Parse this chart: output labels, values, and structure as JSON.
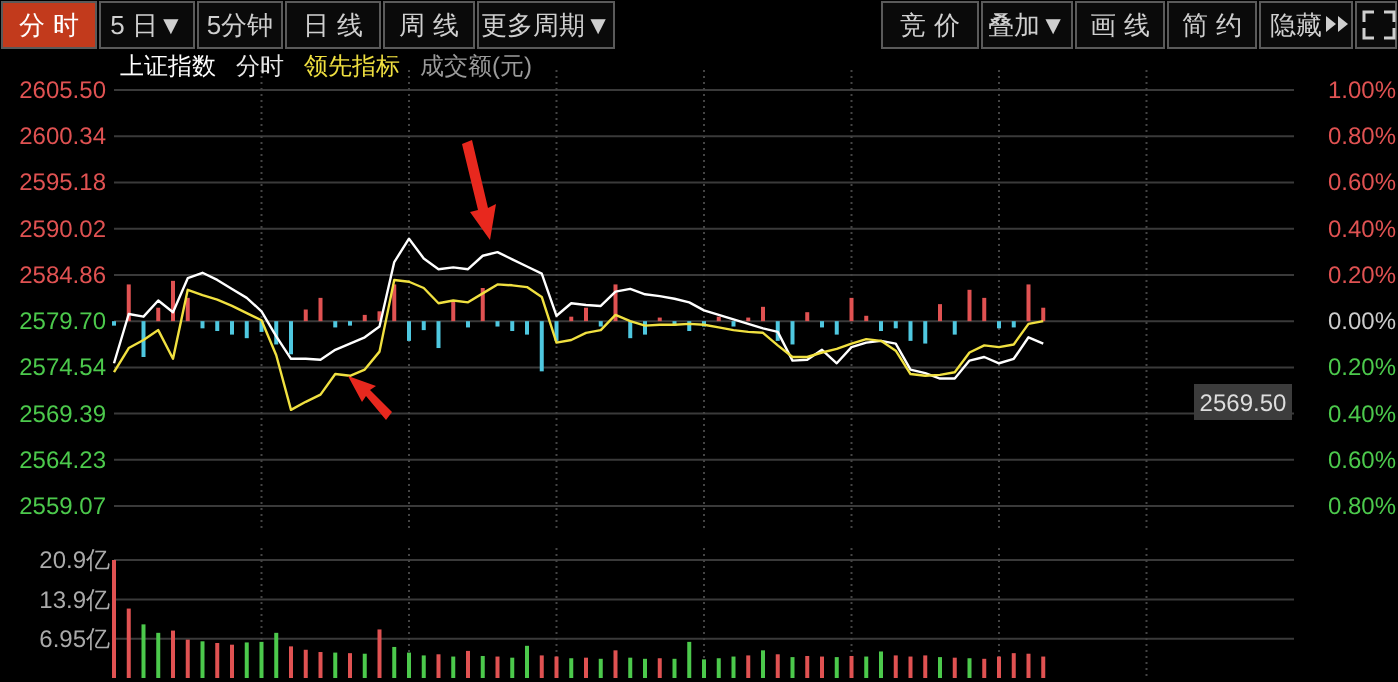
{
  "chart_data": [
    {
      "type": "other",
      "annotations": [
        "分 时",
        "5 日▼",
        "5分钟",
        "日 线",
        "周 线",
        "更多周期▼",
        "竞 价",
        "叠加▼",
        "画 线",
        "简 约",
        "隐藏"
      ]
    },
    {
      "type": "line",
      "categories": [
        null,
        null,
        null,
        null,
        null,
        null,
        null,
        null,
        null,
        null,
        null,
        null,
        null,
        null,
        null,
        null,
        null,
        null,
        null,
        null,
        null,
        null,
        null,
        null,
        null,
        null,
        null,
        null,
        null,
        null,
        null,
        null,
        null,
        null,
        null,
        null,
        null,
        null,
        null,
        null,
        null,
        null,
        null,
        null,
        null,
        null,
        null,
        null,
        null,
        null,
        null,
        null,
        null,
        null,
        null,
        null,
        null,
        null,
        null,
        null,
        null,
        null,
        null,
        null,
        null,
        null,
        null,
        null,
        null,
        null,
        null,
        null,
        null,
        null,
        null,
        null,
        null,
        null,
        null,
        null
      ],
      "ylim": [
        2559.07,
        2605.5
      ],
      "yticks": [
        {
          "value": 2605.5,
          "label": "2605.50"
        },
        2600.34,
        2595.18,
        2590.02,
        2584.86,
        {
          "value": 2579.7,
          "label": "2579.70"
        },
        2574.54,
        2569.39,
        2564.23,
        2559.07
      ],
      "y2lim": [
        -0.8,
        1.0
      ],
      "y2ticks": [
        {
          "value": 1,
          "label": "1.00%"
        },
        {
          "value": 0.8,
          "label": "0.80%"
        },
        {
          "value": 0.6,
          "label": "0.60%"
        },
        {
          "value": 0.4,
          "label": "0.40%"
        },
        {
          "value": 0.2,
          "label": "0.20%"
        },
        {
          "value": 0,
          "label": "0.00%"
        },
        {
          "value": -0.2,
          "label": "0.20%"
        },
        {
          "value": -0.4,
          "label": "0.40%"
        },
        {
          "value": -0.6,
          "label": "0.60%"
        },
        {
          "value": -0.8,
          "label": "0.80%"
        }
      ],
      "grid": true,
      "tick_labels": "y",
      "annotations": [
        "分时",
        "成交额(元)",
        "2569.50"
      ],
      "series": [
        {
          "type": "bar",
          "values": [
            -0.5,
            4.1,
            -4.0,
            1.5,
            4.5,
            2.6,
            -0.8,
            -1.1,
            -1.5,
            -1.9,
            -1.2,
            -2.6,
            -3.7,
            1.3,
            2.6,
            -0.7,
            -0.5,
            0.7,
            1.1,
            4.1,
            -2.2,
            -1.0,
            -3.0,
            2.2,
            -0.7,
            3.7,
            -0.6,
            -1.1,
            -1.5,
            -5.6,
            -2.2,
            0.5,
            1.5,
            -0.6,
            4.1,
            -1.9,
            -1.5,
            0.4,
            -0.5,
            -1.1,
            -0.6,
            0.5,
            -0.6,
            0.4,
            1.6,
            -2.2,
            -2.6,
            1.0,
            -0.7,
            -1.5,
            2.6,
            0.6,
            -1.1,
            -0.8,
            -2.2,
            -2.5,
            1.9,
            -1.5,
            3.5,
            2.6,
            -0.8,
            -0.7,
            4.1,
            1.5,
            null,
            null,
            null,
            null,
            null,
            null,
            null,
            null,
            null,
            null,
            null,
            null,
            null,
            null,
            null,
            null
          ],
          "base": [
            2579.7,
            2579.7,
            2579.7,
            2579.7,
            2579.7,
            2579.7,
            2579.7,
            2579.7,
            2579.7,
            2579.7,
            2579.7,
            2579.7,
            2579.7,
            2579.7,
            2579.7,
            2579.7,
            2579.7,
            2579.7,
            2579.7,
            2579.7,
            2579.7,
            2579.7,
            2579.7,
            2579.7,
            2579.7,
            2579.7,
            2579.7,
            2579.7,
            2579.7,
            2579.7,
            2579.7,
            2579.7,
            2579.7,
            2579.7,
            2579.7,
            2579.7,
            2579.7,
            2579.7,
            2579.7,
            2579.7,
            2579.7,
            2579.7,
            2579.7,
            2579.7,
            2579.7,
            2579.7,
            2579.7,
            2579.7,
            2579.7,
            2579.7,
            2579.7,
            2579.7,
            2579.7,
            2579.7,
            2579.7,
            2579.7,
            2579.7,
            2579.7,
            2579.7,
            2579.7,
            2579.7,
            2579.7,
            2579.7,
            2579.7,
            null,
            null,
            null,
            null,
            null,
            null,
            null,
            null,
            null,
            null,
            null,
            null,
            null,
            null,
            null,
            null
          ],
          "colors": [
            "#4fc8e0",
            "#e05252",
            "#4fc8e0",
            "#e05252",
            "#e05252",
            "#e05252",
            "#4fc8e0",
            "#4fc8e0",
            "#4fc8e0",
            "#4fc8e0",
            "#4fc8e0",
            "#4fc8e0",
            "#4fc8e0",
            "#e05252",
            "#e05252",
            "#4fc8e0",
            "#4fc8e0",
            "#e05252",
            "#e05252",
            "#e05252",
            "#4fc8e0",
            "#4fc8e0",
            "#4fc8e0",
            "#e05252",
            "#4fc8e0",
            "#e05252",
            "#4fc8e0",
            "#4fc8e0",
            "#4fc8e0",
            "#4fc8e0",
            "#4fc8e0",
            "#e05252",
            "#e05252",
            "#4fc8e0",
            "#e05252",
            "#4fc8e0",
            "#4fc8e0",
            "#e05252",
            "#4fc8e0",
            "#4fc8e0",
            "#4fc8e0",
            "#e05252",
            "#4fc8e0",
            "#e05252",
            "#e05252",
            "#4fc8e0",
            "#4fc8e0",
            "#e05252",
            "#4fc8e0",
            "#4fc8e0",
            "#e05252",
            "#e05252",
            "#4fc8e0",
            "#4fc8e0",
            "#4fc8e0",
            "#4fc8e0",
            "#e05252",
            "#4fc8e0",
            "#e05252",
            "#e05252",
            "#4fc8e0",
            "#4fc8e0",
            "#e05252",
            "#e05252",
            null,
            null,
            null,
            null,
            null,
            null,
            null,
            null,
            null,
            null,
            null,
            null,
            null,
            null,
            null,
            null
          ]
        },
        {
          "type": "line",
          "name": "上证指数",
          "color": "#ffffff",
          "values": [
            2575.0,
            2580.5,
            2580.2,
            2582.0,
            2580.7,
            2584.5,
            2585.1,
            2584.3,
            2583.3,
            2582.3,
            2580.8,
            2578.0,
            2575.5,
            2575.5,
            2575.4,
            2576.5,
            2577.2,
            2577.9,
            2579.1,
            2586.3,
            2588.9,
            2586.7,
            2585.5,
            2585.7,
            2585.5,
            2587.0,
            2587.4,
            2586.6,
            2585.8,
            2585.0,
            2580.3,
            2581.7,
            2581.5,
            2581.4,
            2583.0,
            2583.3,
            2582.7,
            2582.5,
            2582.2,
            2581.8,
            2580.9,
            2580.4,
            2579.9,
            2579.4,
            2578.9,
            2578.5,
            2575.3,
            2575.4,
            2576.5,
            2575.0,
            2576.8,
            2577.3,
            2577.5,
            2577.2,
            2574.3,
            2573.9,
            2573.3,
            2573.3,
            2575.3,
            2575.7,
            2575.0,
            2575.5,
            2577.9,
            2577.2,
            null,
            null,
            null,
            null,
            null,
            null,
            null,
            null,
            null,
            null,
            null,
            null,
            null,
            null,
            null,
            null
          ]
        },
        {
          "type": "line",
          "name": "领先指标",
          "color": "#f0e040",
          "values": [
            2574.0,
            2576.7,
            2577.6,
            2578.7,
            2575.5,
            2583.2,
            2582.6,
            2582.1,
            2581.4,
            2580.6,
            2579.8,
            2575.9,
            2569.8,
            2570.7,
            2571.5,
            2573.8,
            2573.6,
            2574.3,
            2576.3,
            2584.3,
            2584.1,
            2583.4,
            2581.7,
            2582.0,
            2581.8,
            2582.8,
            2583.8,
            2583.7,
            2583.5,
            2582.4,
            2577.3,
            2577.6,
            2578.4,
            2578.7,
            2580.4,
            2579.7,
            2579.2,
            2579.3,
            2579.3,
            2579.4,
            2579.3,
            2579.0,
            2578.7,
            2578.5,
            2578.4,
            2577.0,
            2575.7,
            2575.7,
            2576.2,
            2576.6,
            2577.2,
            2577.7,
            2577.5,
            2576.4,
            2573.8,
            2573.6,
            2573.7,
            2574.0,
            2576.2,
            2577.0,
            2576.8,
            2577.1,
            2579.4,
            2579.7,
            null,
            null,
            null,
            null,
            null,
            null,
            null,
            null,
            null,
            null,
            null,
            null,
            null,
            null,
            null,
            null
          ]
        }
      ]
    },
    {
      "type": "bar",
      "categories": [
        null,
        null,
        null,
        null,
        null,
        null,
        null,
        null,
        null,
        null,
        null,
        null,
        null,
        null,
        null,
        null,
        null,
        null,
        null,
        null,
        null,
        null,
        null,
        null,
        null,
        null,
        null,
        null,
        null,
        null,
        null,
        null,
        null,
        null,
        null,
        null,
        null,
        null,
        null,
        null,
        null,
        null,
        null,
        null,
        null,
        null,
        null,
        null,
        null,
        null,
        null,
        null,
        null,
        null,
        null,
        null,
        null,
        null,
        null,
        null,
        null,
        null,
        null,
        null,
        null,
        null,
        null,
        null,
        null,
        null,
        null,
        null,
        null,
        null,
        null,
        null,
        null,
        null,
        null,
        null
      ],
      "ylim": [
        0,
        20.9
      ],
      "yticks": [
        {
          "value": 6.95,
          "label": "6.95亿"
        },
        {
          "value": 13.9,
          "label": "13.9亿"
        },
        {
          "value": 20.9,
          "label": "20.9亿"
        }
      ],
      "grid": true,
      "tick_labels": "y",
      "values": [
        20.9,
        12.3,
        9.5,
        8.0,
        8.4,
        6.8,
        6.5,
        6.2,
        5.9,
        6.3,
        6.4,
        8.0,
        5.6,
        5.0,
        4.6,
        4.5,
        4.4,
        4.3,
        8.6,
        5.5,
        4.5,
        4.0,
        4.2,
        3.8,
        4.8,
        3.9,
        3.8,
        3.6,
        5.7,
        4.0,
        3.8,
        3.5,
        3.6,
        3.4,
        4.9,
        3.6,
        3.4,
        3.5,
        3.4,
        6.4,
        3.3,
        3.5,
        3.8,
        4.0,
        4.9,
        4.2,
        3.7,
        3.9,
        3.8,
        3.7,
        3.9,
        3.8,
        4.7,
        4.0,
        3.8,
        4.0,
        3.7,
        3.6,
        3.5,
        3.4,
        3.8,
        4.4,
        4.3,
        3.8,
        null,
        null,
        null,
        null,
        null,
        null,
        null,
        null,
        null,
        null,
        null,
        null,
        null,
        null,
        null,
        null
      ],
      "colors": [
        "#e05252",
        "#e05252",
        "#4cc94c",
        "#4cc94c",
        "#e05252",
        "#e05252",
        "#4cc94c",
        "#e05252",
        "#e05252",
        "#4cc94c",
        "#4cc94c",
        "#4cc94c",
        "#e05252",
        "#e05252",
        "#e05252",
        "#4cc94c",
        "#e05252",
        "#4cc94c",
        "#e05252",
        "#4cc94c",
        "#4cc94c",
        "#4cc94c",
        "#e05252",
        "#4cc94c",
        "#e05252",
        "#4cc94c",
        "#e05252",
        "#4cc94c",
        "#4cc94c",
        "#e05252",
        "#e05252",
        "#4cc94c",
        "#e05252",
        "#4cc94c",
        "#e05252",
        "#4cc94c",
        "#4cc94c",
        "#e05252",
        "#4cc94c",
        "#4cc94c",
        "#4cc94c",
        "#4cc94c",
        "#4cc94c",
        "#e05252",
        "#4cc94c",
        "#e05252",
        "#4cc94c",
        "#e05252",
        "#e05252",
        "#4cc94c",
        "#e05252",
        "#4cc94c",
        "#4cc94c",
        "#e05252",
        "#e05252",
        "#e05252",
        "#4cc94c",
        "#e05252",
        "#4cc94c",
        "#e05252",
        "#e05252",
        "#e05252",
        "#e05252",
        "#e05252",
        null,
        null,
        null,
        null,
        null,
        null,
        null,
        null,
        null,
        null,
        null,
        null,
        null,
        null,
        null,
        null
      ]
    }
  ]
}
